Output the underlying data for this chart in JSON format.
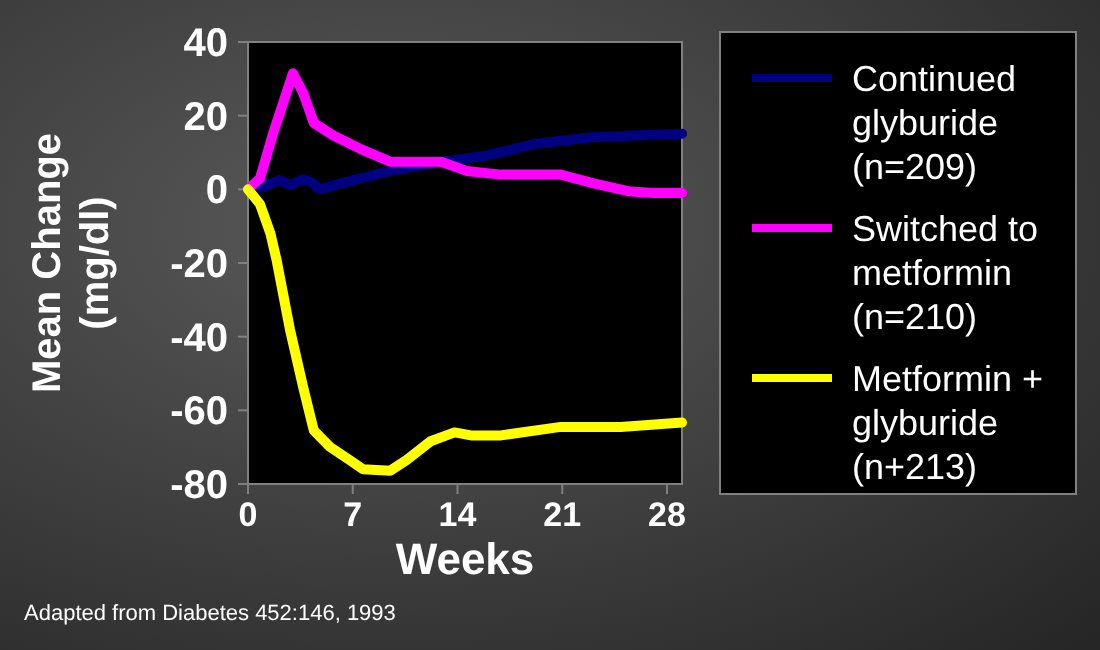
{
  "chart_data": {
    "type": "line",
    "xlabel": "Weeks",
    "ylabel": "Mean Change (mg/dl)",
    "xlim": [
      0,
      29
    ],
    "ylim": [
      -80,
      40
    ],
    "xticks": [
      0,
      7,
      14,
      21,
      28
    ],
    "yticks": [
      -80,
      -60,
      -40,
      -20,
      0,
      20,
      40
    ],
    "legend": "right",
    "grid": false,
    "marker": "none",
    "line_style": "solid",
    "annotations": [
      "Adapted from Diabetes 452:146, 1993"
    ],
    "series": [
      {
        "name": "Continued glyburide (n=209)",
        "color": "#000080",
        "x": [
          0,
          0.8,
          2.1,
          2.8,
          3.7,
          4.2,
          4.8,
          6.2,
          9.3,
          12.9,
          16,
          19.1,
          23.1,
          29
        ],
        "values": [
          0,
          0.4,
          2.5,
          1.2,
          2.7,
          2,
          0,
          1.6,
          4.8,
          7.5,
          9.2,
          12.3,
          14.2,
          15.1
        ]
      },
      {
        "name": "Switched to metformin (n=210)",
        "color": "#ff00ff",
        "x": [
          0,
          0.8,
          1.7,
          3,
          3.7,
          4.4,
          5.7,
          7.5,
          9.5,
          12.9,
          14.6,
          16.9,
          20.9,
          23.1,
          25.4,
          27.1,
          29
        ],
        "values": [
          0,
          3,
          15.5,
          31.5,
          26,
          18,
          14.6,
          11,
          7.5,
          7.5,
          5,
          4,
          4,
          1.6,
          -0.5,
          -1,
          -1
        ]
      },
      {
        "name": "Metformin + glyburide (n+213)",
        "color": "#ffff00",
        "x": [
          0,
          0.8,
          1.5,
          1.9,
          2.8,
          3.7,
          4.4,
          5.5,
          6.8,
          7.7,
          9.5,
          10.6,
          12.2,
          13.8,
          14.9,
          16.9,
          20.9,
          24.9,
          29
        ],
        "values": [
          0,
          -4,
          -12,
          -19,
          -38,
          -54,
          -65.5,
          -70,
          -73.5,
          -76,
          -76.4,
          -73.5,
          -68.4,
          -66,
          -66.8,
          -66.8,
          -64.5,
          -64.5,
          -63.3
        ]
      }
    ]
  }
}
